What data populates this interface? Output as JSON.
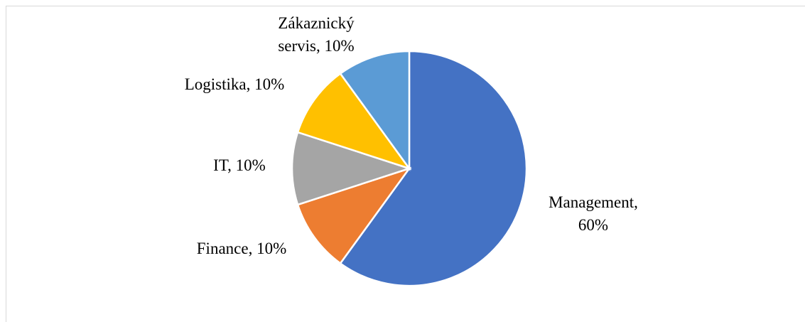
{
  "chart_data": {
    "type": "pie",
    "values": [
      60,
      10,
      10,
      10,
      10
    ],
    "value_labels": [
      [
        "Management,",
        "60%"
      ],
      [
        "Finance, 10%"
      ],
      [
        "IT, 10%"
      ],
      [
        "Logistika, 10%"
      ],
      [
        "Zákaznický",
        "servis, 10%"
      ]
    ],
    "colors": [
      "#4472c4",
      "#ed7d31",
      "#a5a5a5",
      "#ffc000",
      "#5b9bd5"
    ]
  }
}
